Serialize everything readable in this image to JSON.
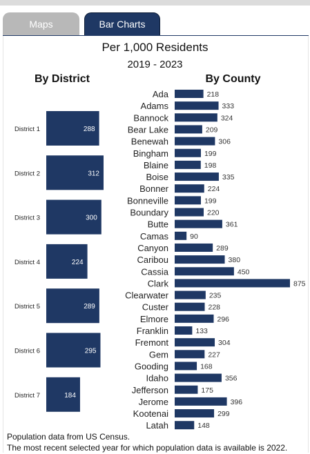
{
  "tabs": [
    {
      "label": "Maps",
      "active": false
    },
    {
      "label": "Bar Charts",
      "active": true
    }
  ],
  "colors": {
    "bar": "#1f3864",
    "tab_active": "#1f3864",
    "tab_inactive": "#b8b8b8"
  },
  "title": "Per 1,000 Residents",
  "subtitle": "2019 - 2023",
  "chart_data": [
    {
      "type": "bar",
      "orientation": "horizontal",
      "title": "By District",
      "categories": [
        "District 1",
        "District 2",
        "District 3",
        "District 4",
        "District 5",
        "District 6",
        "District 7"
      ],
      "values": [
        288,
        312,
        300,
        224,
        289,
        295,
        184
      ],
      "data_labels": true,
      "grid": false
    },
    {
      "type": "bar",
      "orientation": "horizontal",
      "title": "By County",
      "categories": [
        "Ada",
        "Adams",
        "Bannock",
        "Bear Lake",
        "Benewah",
        "Bingham",
        "Blaine",
        "Boise",
        "Bonner",
        "Bonneville",
        "Boundary",
        "Butte",
        "Camas",
        "Canyon",
        "Caribou",
        "Cassia",
        "Clark",
        "Clearwater",
        "Custer",
        "Elmore",
        "Franklin",
        "Fremont",
        "Gem",
        "Gooding",
        "Idaho",
        "Jefferson",
        "Jerome",
        "Kootenai",
        "Latah"
      ],
      "values": [
        218,
        333,
        324,
        209,
        306,
        199,
        198,
        335,
        224,
        199,
        220,
        361,
        90,
        289,
        380,
        450,
        875,
        235,
        228,
        296,
        133,
        304,
        227,
        168,
        356,
        175,
        396,
        299,
        148
      ],
      "data_labels": true,
      "grid": false
    }
  ],
  "footnotes": [
    "Population data from US Census.",
    "The most recent selected year for which population data is available is 2022."
  ]
}
